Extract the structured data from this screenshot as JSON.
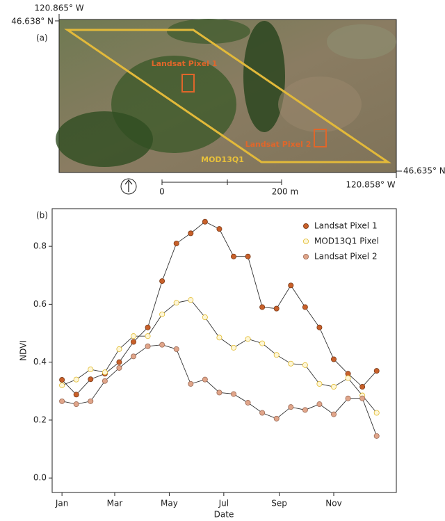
{
  "map": {
    "label": "(a)",
    "lat_top": "46.638° N",
    "lon_left": "120.865° W",
    "lat_bottom": "46.635° N",
    "lon_right": "120.858° W",
    "pixel_1": "Landsat Pixel 1",
    "pixel_2": "Landsat Pixel 2",
    "modis": "MOD13Q1",
    "scale_start": "0",
    "scale_end": "200 m"
  },
  "chart_data": {
    "type": "line",
    "label": "(b)",
    "x_label": "Date",
    "y_label": "NDVI",
    "x": [
      1,
      17,
      33,
      49,
      65,
      81,
      97,
      113,
      129,
      145,
      161,
      177,
      193,
      209,
      225,
      241,
      257,
      273,
      289,
      305,
      321,
      337,
      353
    ],
    "xlim": [
      -10,
      375
    ],
    "xticks": [
      {
        "value": 1,
        "label": "Jan"
      },
      {
        "value": 60,
        "label": "Mar"
      },
      {
        "value": 121,
        "label": "May"
      },
      {
        "value": 182,
        "label": "Jul"
      },
      {
        "value": 244,
        "label": "Sep"
      },
      {
        "value": 305,
        "label": "Nov"
      }
    ],
    "ylim": [
      -0.05,
      0.93
    ],
    "yticks": [
      {
        "value": 0,
        "label": "0.0"
      },
      0.2,
      0.4,
      0.6,
      0.8
    ],
    "legend": "upper right",
    "series": [
      {
        "name": "Landsat Pixel 1",
        "color": "#c8602a",
        "edge": "#7a3a18",
        "values": [
          0.339,
          0.288,
          0.341,
          0.36,
          0.4,
          0.47,
          0.52,
          0.68,
          0.81,
          0.845,
          0.885,
          0.86,
          0.765,
          0.765,
          0.59,
          0.585,
          0.665,
          0.59,
          0.52,
          0.41,
          0.36,
          0.315,
          0.37
        ]
      },
      {
        "name": "MOD13Q1 Pixel",
        "color": "#fdf6d8",
        "edge": "#e2bb2e",
        "values": [
          0.32,
          0.34,
          0.375,
          0.365,
          0.445,
          0.49,
          0.49,
          0.565,
          0.605,
          0.615,
          0.555,
          0.485,
          0.45,
          0.48,
          0.465,
          0.425,
          0.395,
          0.39,
          0.325,
          0.315,
          0.345,
          0.285,
          0.225
        ]
      },
      {
        "name": "Landsat Pixel 2",
        "color": "#e0a58a",
        "edge": "#9b6a55",
        "values": [
          0.265,
          0.255,
          0.265,
          0.335,
          0.38,
          0.42,
          0.455,
          0.46,
          0.445,
          0.325,
          0.34,
          0.295,
          0.29,
          0.26,
          0.225,
          0.205,
          0.245,
          0.235,
          0.255,
          0.22,
          0.275,
          0.275,
          0.145
        ]
      }
    ]
  }
}
